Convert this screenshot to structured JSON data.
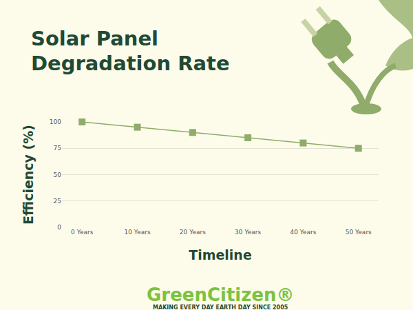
{
  "chart_data": {
    "type": "line",
    "title": "Solar Panel Degradation Rate",
    "x_label": "Timeline",
    "y_label": "Efficiency (%)",
    "categories": [
      "0 Years",
      "10 Years",
      "20 Years",
      "30 Years",
      "40 Years",
      "50 Years"
    ],
    "values": [
      100,
      95,
      90,
      85,
      80,
      75
    ],
    "color": "#8fac6a",
    "marker": "square",
    "line_style": "solid",
    "ylim": [
      0,
      100
    ],
    "yticks": [
      0,
      25,
      50,
      75,
      100
    ],
    "grid": true,
    "brand": "GreenCitizen®",
    "tagline": "MAKING EVERY DAY EARTH DAY SINCE 2005"
  }
}
